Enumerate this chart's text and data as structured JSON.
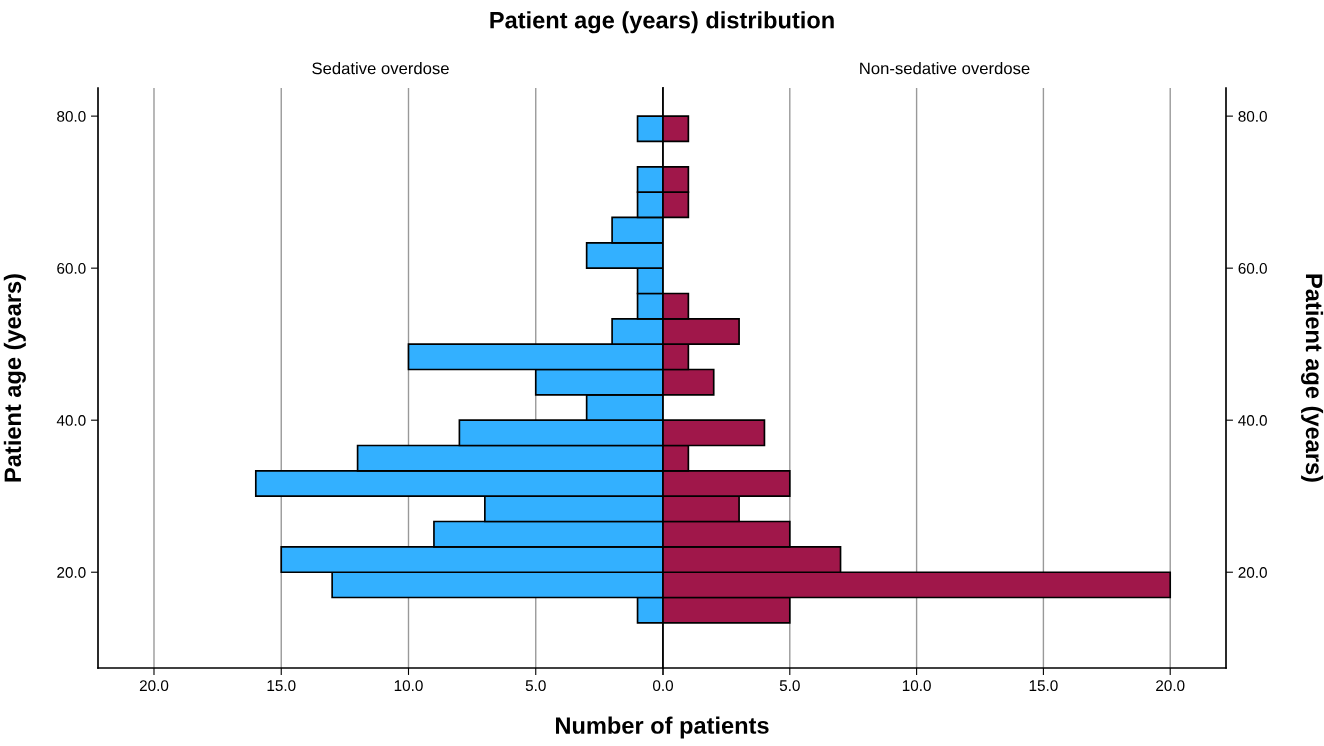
{
  "chart_data": [
    {
      "type": "histogram",
      "orientation": "horizontal",
      "title": "Sedative overdose",
      "ylabel": "Patient age (years)",
      "annotations": [
        "Patient age (years) distribution"
      ],
      "bins": [
        13.33,
        16.67,
        20,
        23.33,
        26.67,
        30,
        33.33,
        36.67,
        40,
        43.33,
        46.67,
        50,
        53.33,
        56.67,
        60,
        63.33,
        66.67,
        70,
        73.33,
        76.67,
        80
      ],
      "values": [
        1,
        13,
        15,
        9,
        7,
        16,
        12,
        8,
        3,
        5,
        10,
        2,
        1,
        1,
        3,
        2,
        1,
        1,
        0,
        1
      ],
      "color": "#33b0ff",
      "xlim": [
        22.2,
        0
      ],
      "xticks": [
        {
          "value": 20,
          "label": "20.0"
        },
        {
          "value": 15,
          "label": "15.0"
        },
        {
          "value": 10,
          "label": "10.0"
        },
        {
          "value": 5,
          "label": "5.0"
        },
        {
          "value": 0,
          "label": "0.0"
        }
      ],
      "ylim": [
        7.4,
        83.7
      ],
      "yticks": [
        {
          "value": 20,
          "label": "20.0"
        },
        {
          "value": 40,
          "label": "40.0"
        },
        {
          "value": 60,
          "label": "60.0"
        },
        {
          "value": 80,
          "label": "80.0"
        }
      ],
      "grid": "x"
    },
    {
      "type": "histogram",
      "orientation": "horizontal",
      "title": "Non-sedative overdose",
      "xlabel": "Number of patients",
      "ylabel": "Patient age (years)",
      "bins": [
        13.33,
        16.67,
        20,
        23.33,
        26.67,
        30,
        33.33,
        36.67,
        40,
        43.33,
        46.67,
        50,
        53.33,
        56.67,
        60,
        63.33,
        66.67,
        70,
        73.33,
        76.67,
        80
      ],
      "values": [
        5,
        20,
        7,
        5,
        3,
        5,
        1,
        4,
        0,
        2,
        1,
        3,
        1,
        0,
        0,
        0,
        1,
        1,
        0,
        1
      ],
      "color": "#a0174a",
      "xlim": [
        0,
        22.2
      ],
      "xticks": [
        {
          "value": 0,
          "label": null
        },
        {
          "value": 5,
          "label": "5.0"
        },
        {
          "value": 10,
          "label": "10.0"
        },
        {
          "value": 15,
          "label": "15.0"
        },
        {
          "value": 20,
          "label": "20.0"
        }
      ],
      "ylim": [
        7.4,
        83.7
      ],
      "yticks": [
        {
          "value": 20,
          "label": "20.0"
        },
        {
          "value": 40,
          "label": "40.0"
        },
        {
          "value": 60,
          "label": "60.0"
        },
        {
          "value": 80,
          "label": "80.0"
        }
      ],
      "grid": "x"
    }
  ]
}
